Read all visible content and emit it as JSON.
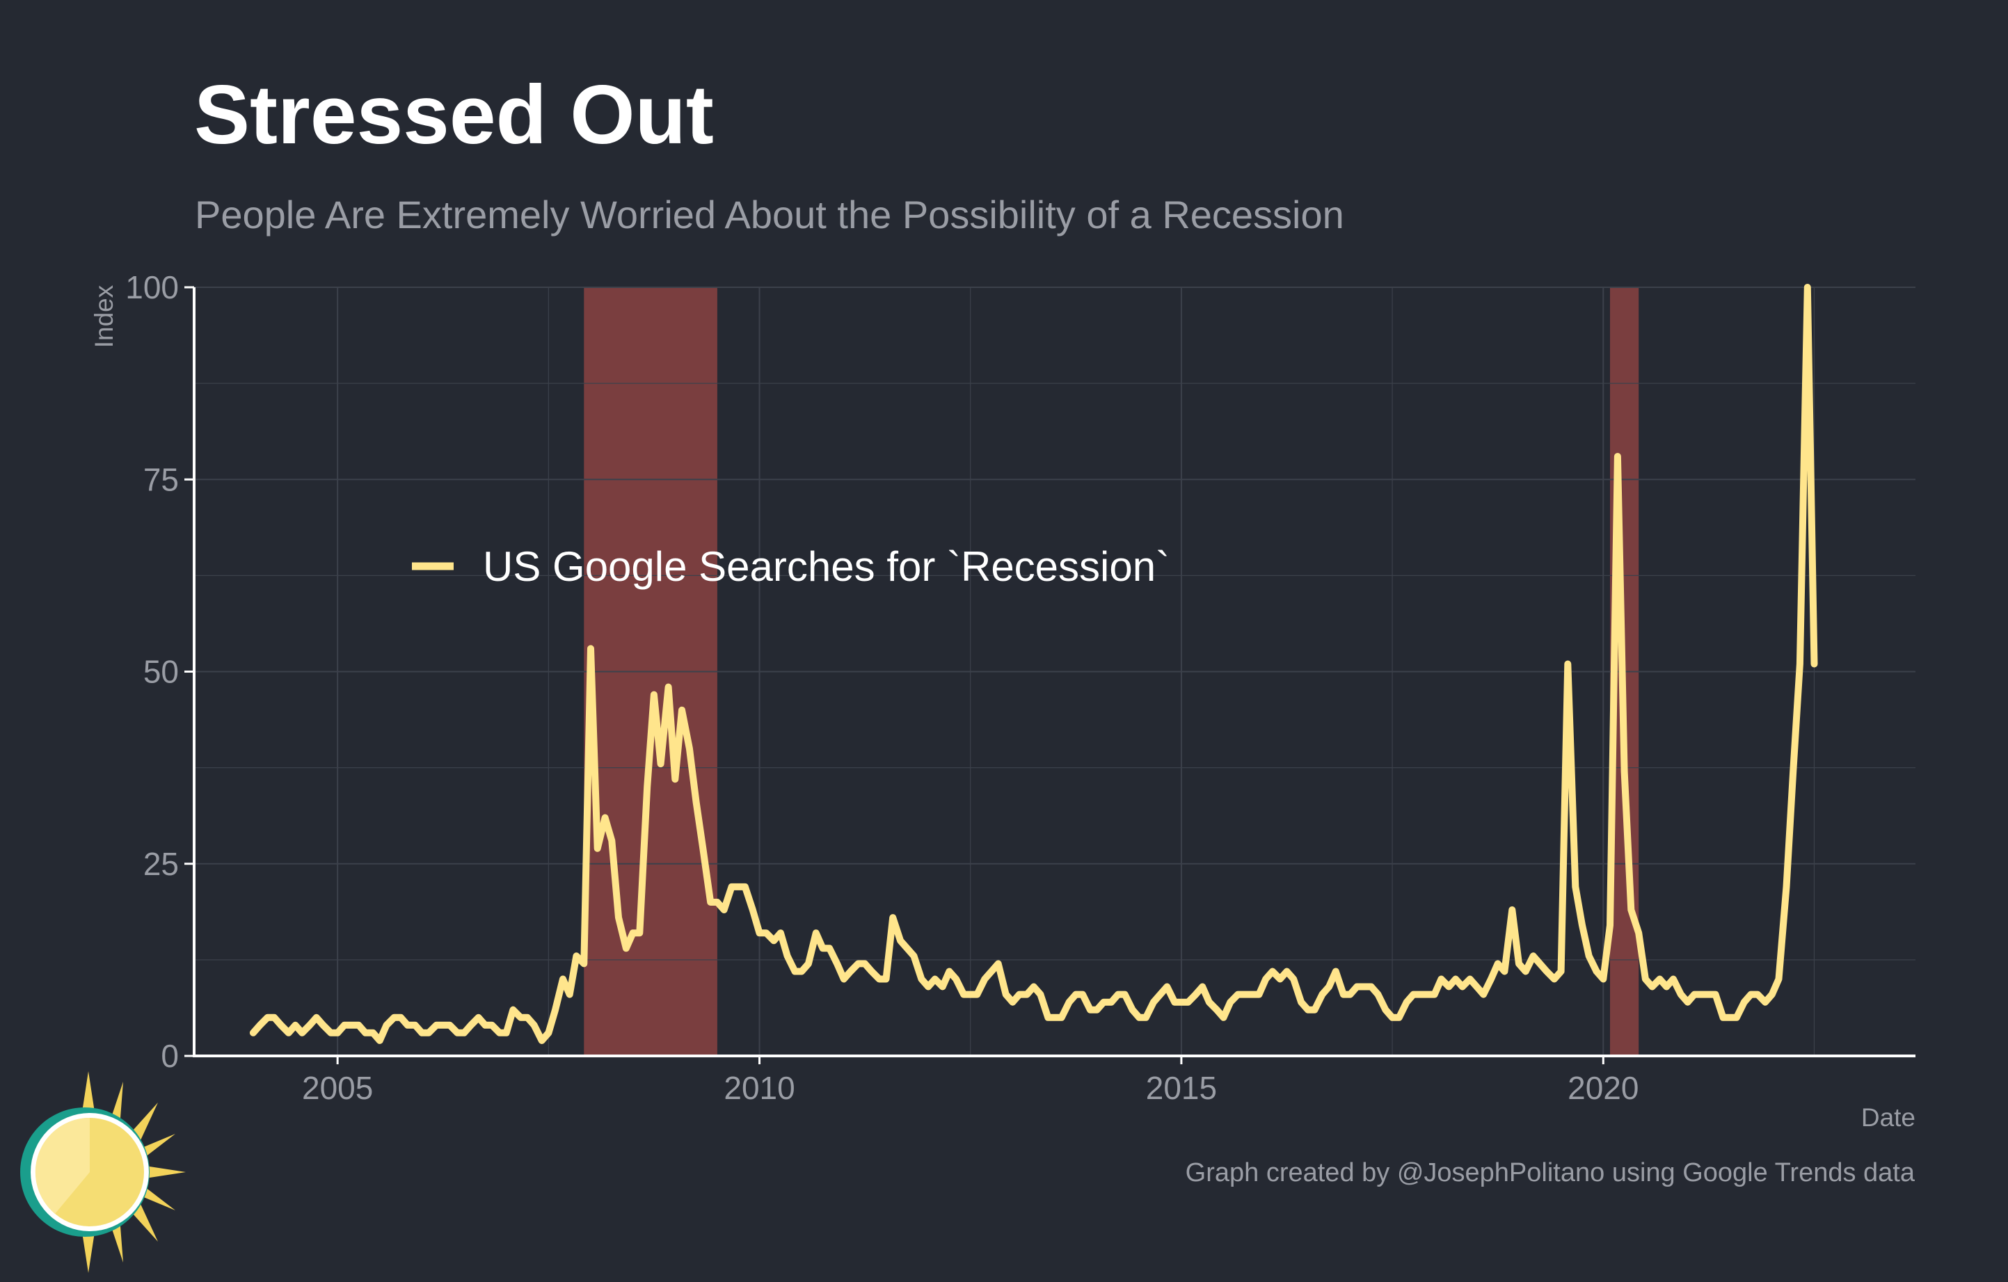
{
  "title": "Stressed Out",
  "subtitle": "People Are Extremely Worried About the Possibility of a Recession",
  "caption": "Graph created by @JosephPolitano using Google Trends data",
  "colors": {
    "background": "#252932",
    "line": "#ffe58c",
    "recession_shade": "#7a3e3f",
    "grid": "#3c414b",
    "axis": "#ffffff",
    "text_muted": "#9a9da5"
  },
  "chart_data": {
    "type": "line",
    "title": "Stressed Out",
    "subtitle": "People Are Extremely Worried About the Possibility of a Recession",
    "xlabel": "Date",
    "ylabel": "Index",
    "xlim": [
      2003.3,
      2023.7
    ],
    "ylim": [
      0,
      100
    ],
    "x_ticks": [
      2005,
      2010,
      2015,
      2020
    ],
    "y_ticks": [
      0,
      25,
      50,
      75,
      100
    ],
    "grid": true,
    "legend_position": "upper-left inside",
    "recession_periods": [
      {
        "start": 2007.92,
        "end": 2009.5
      },
      {
        "start": 2020.08,
        "end": 2020.42
      }
    ],
    "series": [
      {
        "name": "US Google Searches for `Recession`",
        "color": "#ffe58c",
        "points": [
          [
            2004.0,
            3
          ],
          [
            2004.08,
            4
          ],
          [
            2004.17,
            5
          ],
          [
            2004.25,
            5
          ],
          [
            2004.33,
            4
          ],
          [
            2004.42,
            3
          ],
          [
            2004.5,
            4
          ],
          [
            2004.58,
            3
          ],
          [
            2004.67,
            4
          ],
          [
            2004.75,
            5
          ],
          [
            2004.83,
            4
          ],
          [
            2004.92,
            3
          ],
          [
            2005.0,
            3
          ],
          [
            2005.08,
            4
          ],
          [
            2005.17,
            4
          ],
          [
            2005.25,
            4
          ],
          [
            2005.33,
            3
          ],
          [
            2005.42,
            3
          ],
          [
            2005.5,
            2
          ],
          [
            2005.58,
            4
          ],
          [
            2005.67,
            5
          ],
          [
            2005.75,
            5
          ],
          [
            2005.83,
            4
          ],
          [
            2005.92,
            4
          ],
          [
            2006.0,
            3
          ],
          [
            2006.08,
            3
          ],
          [
            2006.17,
            4
          ],
          [
            2006.25,
            4
          ],
          [
            2006.33,
            4
          ],
          [
            2006.42,
            3
          ],
          [
            2006.5,
            3
          ],
          [
            2006.58,
            4
          ],
          [
            2006.67,
            5
          ],
          [
            2006.75,
            4
          ],
          [
            2006.83,
            4
          ],
          [
            2006.92,
            3
          ],
          [
            2007.0,
            3
          ],
          [
            2007.08,
            6
          ],
          [
            2007.17,
            5
          ],
          [
            2007.25,
            5
          ],
          [
            2007.33,
            4
          ],
          [
            2007.42,
            2
          ],
          [
            2007.5,
            3
          ],
          [
            2007.58,
            6
          ],
          [
            2007.67,
            10
          ],
          [
            2007.75,
            8
          ],
          [
            2007.83,
            13
          ],
          [
            2007.92,
            12
          ],
          [
            2008.0,
            53
          ],
          [
            2008.08,
            27
          ],
          [
            2008.17,
            31
          ],
          [
            2008.25,
            28
          ],
          [
            2008.33,
            18
          ],
          [
            2008.42,
            14
          ],
          [
            2008.5,
            16
          ],
          [
            2008.58,
            16
          ],
          [
            2008.67,
            35
          ],
          [
            2008.75,
            47
          ],
          [
            2008.83,
            38
          ],
          [
            2008.92,
            48
          ],
          [
            2009.0,
            36
          ],
          [
            2009.08,
            45
          ],
          [
            2009.17,
            40
          ],
          [
            2009.25,
            33
          ],
          [
            2009.33,
            27
          ],
          [
            2009.42,
            20
          ],
          [
            2009.5,
            20
          ],
          [
            2009.58,
            19
          ],
          [
            2009.67,
            22
          ],
          [
            2009.75,
            22
          ],
          [
            2009.83,
            22
          ],
          [
            2009.92,
            19
          ],
          [
            2010.0,
            16
          ],
          [
            2010.08,
            16
          ],
          [
            2010.17,
            15
          ],
          [
            2010.25,
            16
          ],
          [
            2010.33,
            13
          ],
          [
            2010.42,
            11
          ],
          [
            2010.5,
            11
          ],
          [
            2010.58,
            12
          ],
          [
            2010.67,
            16
          ],
          [
            2010.75,
            14
          ],
          [
            2010.83,
            14
          ],
          [
            2010.92,
            12
          ],
          [
            2011.0,
            10
          ],
          [
            2011.08,
            11
          ],
          [
            2011.17,
            12
          ],
          [
            2011.25,
            12
          ],
          [
            2011.33,
            11
          ],
          [
            2011.42,
            10
          ],
          [
            2011.5,
            10
          ],
          [
            2011.58,
            18
          ],
          [
            2011.67,
            15
          ],
          [
            2011.75,
            14
          ],
          [
            2011.83,
            13
          ],
          [
            2011.92,
            10
          ],
          [
            2012.0,
            9
          ],
          [
            2012.08,
            10
          ],
          [
            2012.17,
            9
          ],
          [
            2012.25,
            11
          ],
          [
            2012.33,
            10
          ],
          [
            2012.42,
            8
          ],
          [
            2012.5,
            8
          ],
          [
            2012.58,
            8
          ],
          [
            2012.67,
            10
          ],
          [
            2012.75,
            11
          ],
          [
            2012.83,
            12
          ],
          [
            2012.92,
            8
          ],
          [
            2013.0,
            7
          ],
          [
            2013.08,
            8
          ],
          [
            2013.17,
            8
          ],
          [
            2013.25,
            9
          ],
          [
            2013.33,
            8
          ],
          [
            2013.42,
            5
          ],
          [
            2013.5,
            5
          ],
          [
            2013.58,
            5
          ],
          [
            2013.67,
            7
          ],
          [
            2013.75,
            8
          ],
          [
            2013.83,
            8
          ],
          [
            2013.92,
            6
          ],
          [
            2014.0,
            6
          ],
          [
            2014.08,
            7
          ],
          [
            2014.17,
            7
          ],
          [
            2014.25,
            8
          ],
          [
            2014.33,
            8
          ],
          [
            2014.42,
            6
          ],
          [
            2014.5,
            5
          ],
          [
            2014.58,
            5
          ],
          [
            2014.67,
            7
          ],
          [
            2014.75,
            8
          ],
          [
            2014.83,
            9
          ],
          [
            2014.92,
            7
          ],
          [
            2015.0,
            7
          ],
          [
            2015.08,
            7
          ],
          [
            2015.17,
            8
          ],
          [
            2015.25,
            9
          ],
          [
            2015.33,
            7
          ],
          [
            2015.42,
            6
          ],
          [
            2015.5,
            5
          ],
          [
            2015.58,
            7
          ],
          [
            2015.67,
            8
          ],
          [
            2015.75,
            8
          ],
          [
            2015.83,
            8
          ],
          [
            2015.92,
            8
          ],
          [
            2016.0,
            10
          ],
          [
            2016.08,
            11
          ],
          [
            2016.17,
            10
          ],
          [
            2016.25,
            11
          ],
          [
            2016.33,
            10
          ],
          [
            2016.42,
            7
          ],
          [
            2016.5,
            6
          ],
          [
            2016.58,
            6
          ],
          [
            2016.67,
            8
          ],
          [
            2016.75,
            9
          ],
          [
            2016.83,
            11
          ],
          [
            2016.92,
            8
          ],
          [
            2017.0,
            8
          ],
          [
            2017.08,
            9
          ],
          [
            2017.17,
            9
          ],
          [
            2017.25,
            9
          ],
          [
            2017.33,
            8
          ],
          [
            2017.42,
            6
          ],
          [
            2017.5,
            5
          ],
          [
            2017.58,
            5
          ],
          [
            2017.67,
            7
          ],
          [
            2017.75,
            8
          ],
          [
            2017.83,
            8
          ],
          [
            2017.92,
            8
          ],
          [
            2018.0,
            8
          ],
          [
            2018.08,
            10
          ],
          [
            2018.17,
            9
          ],
          [
            2018.25,
            10
          ],
          [
            2018.33,
            9
          ],
          [
            2018.42,
            10
          ],
          [
            2018.5,
            9
          ],
          [
            2018.58,
            8
          ],
          [
            2018.67,
            10
          ],
          [
            2018.75,
            12
          ],
          [
            2018.83,
            11
          ],
          [
            2018.92,
            19
          ],
          [
            2019.0,
            12
          ],
          [
            2019.08,
            11
          ],
          [
            2019.17,
            13
          ],
          [
            2019.25,
            12
          ],
          [
            2019.33,
            11
          ],
          [
            2019.42,
            10
          ],
          [
            2019.5,
            11
          ],
          [
            2019.58,
            51
          ],
          [
            2019.67,
            22
          ],
          [
            2019.75,
            17
          ],
          [
            2019.83,
            13
          ],
          [
            2019.92,
            11
          ],
          [
            2020.0,
            10
          ],
          [
            2020.08,
            17
          ],
          [
            2020.17,
            78
          ],
          [
            2020.25,
            37
          ],
          [
            2020.33,
            19
          ],
          [
            2020.42,
            16
          ],
          [
            2020.5,
            10
          ],
          [
            2020.58,
            9
          ],
          [
            2020.67,
            10
          ],
          [
            2020.75,
            9
          ],
          [
            2020.83,
            10
          ],
          [
            2020.92,
            8
          ],
          [
            2021.0,
            7
          ],
          [
            2021.08,
            8
          ],
          [
            2021.17,
            8
          ],
          [
            2021.25,
            8
          ],
          [
            2021.33,
            8
          ],
          [
            2021.42,
            5
          ],
          [
            2021.5,
            5
          ],
          [
            2021.58,
            5
          ],
          [
            2021.67,
            7
          ],
          [
            2021.75,
            8
          ],
          [
            2021.83,
            8
          ],
          [
            2021.92,
            7
          ],
          [
            2022.0,
            8
          ],
          [
            2022.08,
            10
          ],
          [
            2022.17,
            22
          ],
          [
            2022.25,
            37
          ],
          [
            2022.33,
            51
          ],
          [
            2022.42,
            100
          ],
          [
            2022.5,
            51
          ]
        ]
      }
    ]
  }
}
